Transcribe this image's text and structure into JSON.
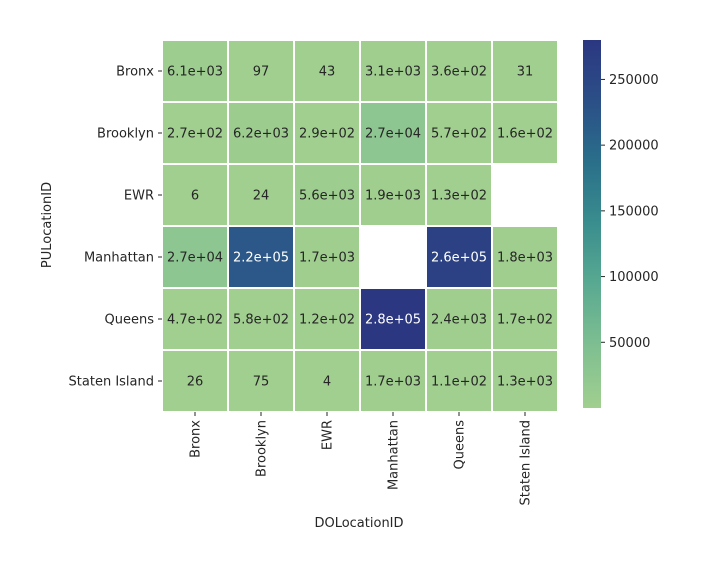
{
  "chart_data": {
    "type": "heatmap",
    "xlabel": "DOLocationID",
    "ylabel": "PULocationID",
    "x_categories": [
      "Bronx",
      "Brooklyn",
      "EWR",
      "Manhattan",
      "Queens",
      "Staten Island"
    ],
    "y_categories": [
      "Bronx",
      "Brooklyn",
      "EWR",
      "Manhattan",
      "Queens",
      "Staten Island"
    ],
    "values": [
      [
        6100,
        97,
        43,
        3100,
        360,
        31
      ],
      [
        270,
        6200,
        290,
        27000,
        570,
        160
      ],
      [
        6,
        24,
        5600,
        1900,
        130,
        null
      ],
      [
        27000,
        220000,
        1700,
        null,
        260000,
        1800
      ],
      [
        470,
        580,
        120,
        280000,
        2400,
        170
      ],
      [
        26,
        75,
        4,
        1700,
        110,
        1300
      ]
    ],
    "labels": [
      [
        "6.1e+03",
        "97",
        "43",
        "3.1e+03",
        "3.6e+02",
        "31"
      ],
      [
        "2.7e+02",
        "6.2e+03",
        "2.9e+02",
        "2.7e+04",
        "5.7e+02",
        "1.6e+02"
      ],
      [
        "6",
        "24",
        "5.6e+03",
        "1.9e+03",
        "1.3e+02",
        ""
      ],
      [
        "2.7e+04",
        "2.2e+05",
        "1.7e+03",
        "",
        "2.6e+05",
        "1.8e+03"
      ],
      [
        "4.7e+02",
        "5.8e+02",
        "1.2e+02",
        "2.8e+05",
        "2.4e+03",
        "1.7e+02"
      ],
      [
        "26",
        "75",
        "4",
        "1.7e+03",
        "1.1e+02",
        "1.3e+03"
      ]
    ],
    "colorbar": {
      "min": 0,
      "max": 280000,
      "ticks": [
        50000,
        100000,
        150000,
        200000,
        250000
      ],
      "tick_labels": [
        "50000",
        "100000",
        "150000",
        "200000",
        "250000"
      ],
      "colormap": [
        "#a1cf8f",
        "#7fbf91",
        "#5aaa91",
        "#3a8e8e",
        "#2a6f8a",
        "#2b4f87",
        "#2b3781"
      ]
    },
    "grid": false,
    "legend": "colorbar-right"
  }
}
